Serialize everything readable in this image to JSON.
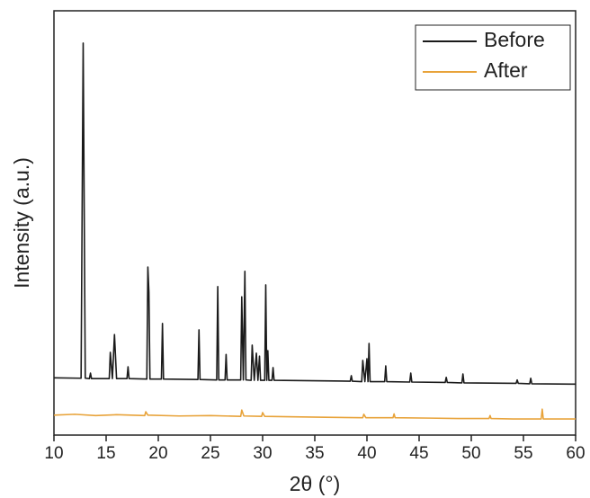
{
  "chart_data": {
    "type": "line",
    "xlabel": "2θ (°)",
    "ylabel": "Intensity (a.u.)",
    "xlim": [
      10,
      60
    ],
    "xticks": [
      10,
      15,
      20,
      25,
      30,
      35,
      40,
      45,
      50,
      55,
      60
    ],
    "ylim": [
      0,
      100
    ],
    "legend": "top-right",
    "series": [
      {
        "name": "Before",
        "color": "#1a1a1a",
        "x": [
          10,
          12.6,
          12.8,
          13.0,
          13.4,
          13.5,
          13.6,
          15.3,
          15.4,
          15.6,
          15.8,
          16.0,
          17.0,
          17.1,
          17.2,
          18.9,
          19.0,
          19.1,
          19.2,
          20.3,
          20.4,
          20.5,
          23.8,
          23.9,
          24.0,
          25.6,
          25.7,
          25.8,
          26.4,
          26.5,
          26.6,
          27.9,
          28.0,
          28.15,
          28.3,
          28.4,
          28.9,
          29.0,
          29.2,
          29.4,
          29.55,
          29.7,
          29.8,
          30.2,
          30.3,
          30.4,
          30.5,
          30.6,
          30.9,
          31.0,
          31.1,
          38.4,
          38.5,
          38.6,
          39.5,
          39.6,
          39.8,
          40.0,
          40.1,
          40.2,
          40.3,
          41.7,
          41.8,
          41.9,
          44.1,
          44.2,
          44.3,
          47.5,
          47.6,
          47.7,
          49.1,
          49.2,
          49.3,
          54.3,
          54.4,
          54.5,
          55.6,
          55.7,
          55.8,
          60
        ],
        "values": [
          13.5,
          13.4,
          92.4,
          13.4,
          13.3,
          14.6,
          13.3,
          13.3,
          19.5,
          13.3,
          23.7,
          13.3,
          13.3,
          16.1,
          13.3,
          13.2,
          39.6,
          33.7,
          13.2,
          13.2,
          26.3,
          13.2,
          13.1,
          24.8,
          13.1,
          13.0,
          35.0,
          13.0,
          13.0,
          19.0,
          13.0,
          13.0,
          32.6,
          13.0,
          38.6,
          13.0,
          12.9,
          21.2,
          12.9,
          19.3,
          12.9,
          18.6,
          12.9,
          12.9,
          35.4,
          12.9,
          19.9,
          12.9,
          12.9,
          15.9,
          12.9,
          12.7,
          14.0,
          12.7,
          12.6,
          17.6,
          12.6,
          18.0,
          12.6,
          21.6,
          12.6,
          12.6,
          16.3,
          12.6,
          12.5,
          14.6,
          12.5,
          12.4,
          13.6,
          12.4,
          12.3,
          14.4,
          12.3,
          12.2,
          13.0,
          12.2,
          12.1,
          13.4,
          12.1,
          12.0
        ]
      },
      {
        "name": "After",
        "color": "#e8a33a",
        "x": [
          10,
          12,
          14,
          16,
          18.7,
          18.8,
          19,
          22,
          25,
          27.9,
          28.0,
          28.2,
          29.9,
          30.0,
          30.2,
          33,
          36,
          39.6,
          39.7,
          39.9,
          42.5,
          42.6,
          42.7,
          46,
          49,
          51.7,
          51.8,
          51.9,
          54,
          56.7,
          56.8,
          56.9,
          60
        ],
        "values": [
          4.7,
          4.9,
          4.6,
          4.8,
          4.6,
          5.5,
          4.7,
          4.5,
          4.6,
          4.4,
          5.9,
          4.5,
          4.4,
          5.3,
          4.4,
          4.3,
          4.2,
          4.1,
          4.9,
          4.1,
          4.1,
          5.0,
          4.1,
          4.0,
          3.9,
          3.9,
          4.6,
          3.9,
          3.8,
          3.8,
          6.1,
          3.8,
          3.8
        ]
      }
    ]
  }
}
